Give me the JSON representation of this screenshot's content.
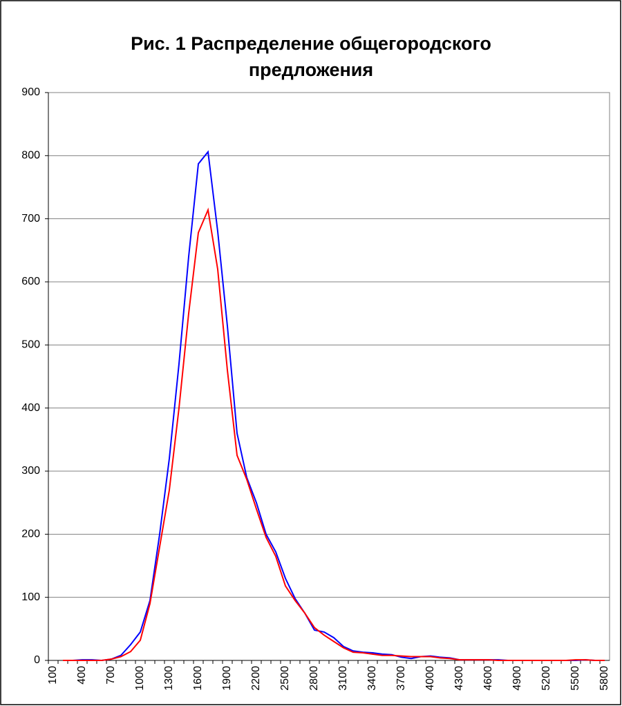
{
  "chart_data": {
    "type": "line",
    "title": "Рис. 1 Распределение общегородского\nпредложения",
    "categories": [
      "100",
      null,
      null,
      "400",
      null,
      null,
      "700",
      null,
      null,
      "1000",
      null,
      null,
      "1300",
      null,
      null,
      "1600",
      null,
      null,
      "1900",
      null,
      null,
      "2200",
      null,
      null,
      "2500",
      null,
      null,
      "2800",
      null,
      null,
      "3100",
      null,
      null,
      "3400",
      null,
      null,
      "3700",
      null,
      null,
      "4000",
      null,
      null,
      "4300",
      null,
      null,
      "4600",
      null,
      null,
      "4900",
      null,
      null,
      "5200",
      null,
      null,
      "5500",
      null,
      null,
      "5800"
    ],
    "series": [
      {
        "color": "#0000ff",
        "values": [
          null,
          0,
          0,
          1,
          1,
          0,
          2,
          8,
          25,
          45,
          95,
          200,
          320,
          470,
          640,
          787,
          806,
          680,
          530,
          360,
          290,
          250,
          200,
          172,
          130,
          98,
          75,
          48,
          45,
          36,
          22,
          15,
          13,
          12,
          10,
          9,
          5,
          3,
          6,
          7,
          5,
          4,
          1,
          1,
          1,
          1,
          1,
          0,
          0,
          0,
          0,
          0,
          0,
          0,
          0,
          1,
          0,
          0
        ]
      },
      {
        "color": "#ff0000",
        "values": [
          null,
          0,
          0,
          0,
          0,
          0,
          2,
          6,
          14,
          32,
          90,
          180,
          270,
          400,
          550,
          678,
          714,
          620,
          460,
          325,
          287,
          240,
          195,
          165,
          118,
          95,
          75,
          52,
          40,
          30,
          20,
          13,
          12,
          10,
          8,
          8,
          7,
          6,
          6,
          6,
          4,
          3,
          1,
          1,
          1,
          1,
          0,
          0,
          0,
          0,
          0,
          0,
          0,
          0,
          1,
          1,
          0,
          0
        ]
      }
    ],
    "ylim": [
      0,
      900
    ],
    "yticks": [
      0,
      100,
      200,
      300,
      400,
      500,
      600,
      700,
      800,
      900
    ],
    "grid": true
  }
}
